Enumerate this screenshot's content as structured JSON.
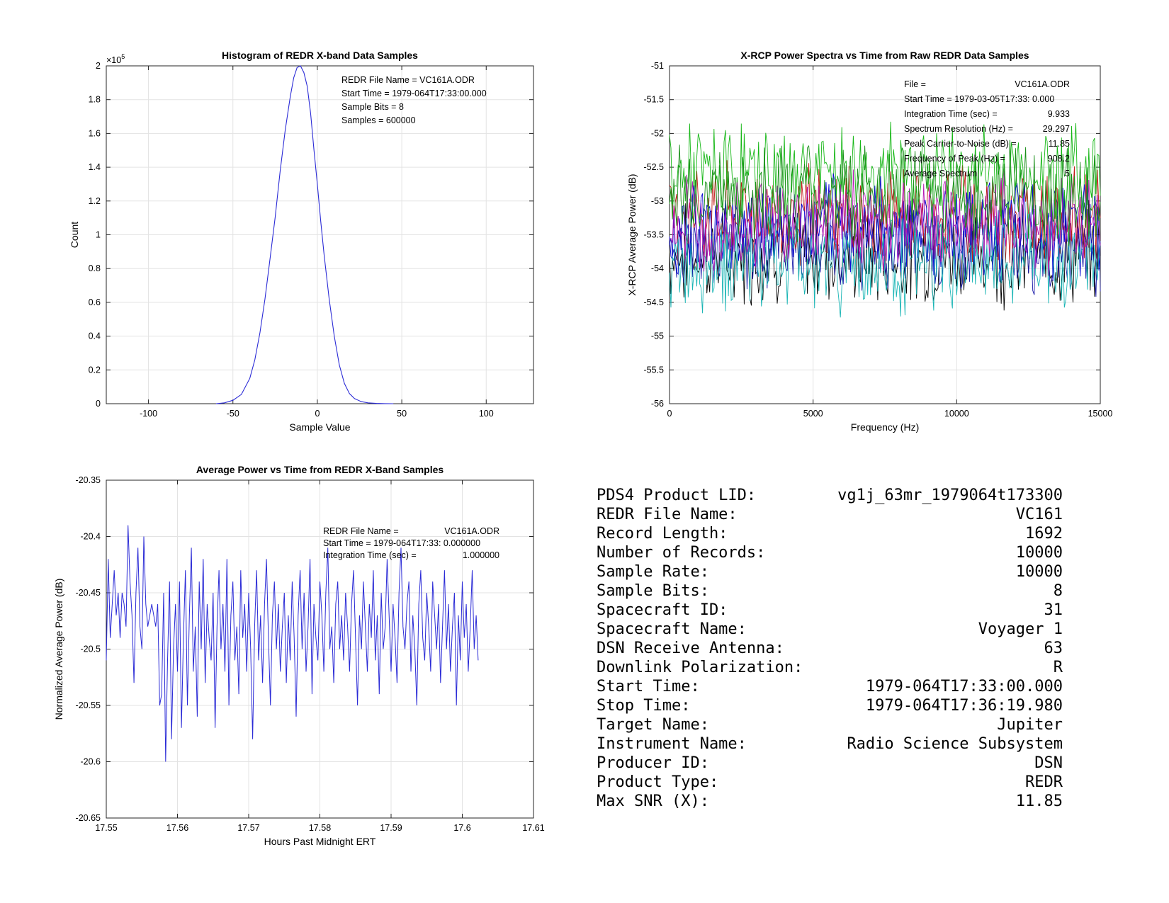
{
  "chart_data": [
    {
      "type": "line",
      "title": "Histogram of REDR X-band Data Samples",
      "xlabel": "Sample Value",
      "ylabel": "Count",
      "xlim": [
        -125,
        128
      ],
      "ylim": [
        0,
        200000
      ],
      "y_exponent_label": "×10",
      "y_exponent_power": "5",
      "y_tick_scale": 100000,
      "grid": true,
      "xticks": [
        -100,
        -50,
        0,
        50,
        100
      ],
      "yticks": [
        0,
        20000,
        40000,
        60000,
        80000,
        100000,
        120000,
        140000,
        160000,
        180000,
        200000
      ],
      "x": [
        -60,
        -55,
        -50,
        -45,
        -40,
        -37,
        -34,
        -31,
        -28,
        -25,
        -22,
        -19,
        -16,
        -14,
        -12,
        -10,
        -8,
        -6,
        -4,
        -2,
        0,
        2,
        4,
        7,
        10,
        13,
        16,
        19,
        22,
        26,
        30,
        35,
        40,
        45
      ],
      "values": [
        0,
        500,
        2000,
        5500,
        15000,
        26000,
        42000,
        62000,
        86000,
        110000,
        138000,
        162000,
        182000,
        193000,
        199000,
        200000,
        196000,
        188000,
        172000,
        150000,
        130000,
        108000,
        88000,
        62000,
        40000,
        23000,
        12000,
        6000,
        3000,
        1200,
        500,
        150,
        50,
        0
      ],
      "series_color": "#2b2bd6",
      "annotations": [
        "REDR File Name = VC161A.ODR",
        "Start Time = 1979-064T17:33:00.000",
        "Sample Bits = 8",
        "Samples = 600000"
      ]
    },
    {
      "type": "line",
      "title": "X-RCP Power Spectra vs Time from Raw REDR Data Samples",
      "xlabel": "Frequency (Hz)",
      "ylabel": "X-RCP Average Power (dB)",
      "xlim": [
        0,
        15000
      ],
      "ylim": [
        -56,
        -51
      ],
      "grid": true,
      "xticks": [
        0,
        5000,
        10000,
        15000
      ],
      "yticks": [
        -56,
        -55.5,
        -55,
        -54.5,
        -54,
        -53.5,
        -53,
        -52.5,
        -52,
        -51.5,
        -51
      ],
      "series_colors": [
        "#000000",
        "#1a1aa8",
        "#c21a1a",
        "#16b716",
        "#0a0ad4",
        "#1ab5b5",
        "#b51ab5",
        "#1a8f1a"
      ],
      "series_mean_db": [
        -53.8,
        -53.6,
        -53.2,
        -52.6,
        -53.4,
        -53.9,
        -53.3,
        -52.9
      ],
      "series_spread_db": 0.55,
      "annotations": [
        {
          "label": "File =",
          "value": "VC161A.ODR"
        },
        {
          "label": "Start Time = 1979-03-05T17:33: 0.000",
          "value": ""
        },
        {
          "label": "Integration Time (sec) =",
          "value": "9.933"
        },
        {
          "label": "Spectrum Resolution (Hz) =",
          "value": "29.297"
        },
        {
          "label": "Peak Carrier-to-Noise (dB) =",
          "value": "11.85"
        },
        {
          "label": "Frequency of Peak (Hz) =",
          "value": "908.2"
        },
        {
          "label": "Average Spectrum",
          "value": "5"
        }
      ]
    },
    {
      "type": "line",
      "title": "Average Power vs Time from REDR X-Band Samples",
      "xlabel": "Hours Past Midnight ERT",
      "ylabel": "Normalized Average Power (dB)",
      "xlim": [
        17.55,
        17.61
      ],
      "ylim": [
        -20.65,
        -20.35
      ],
      "grid": true,
      "xticks": [
        17.55,
        17.56,
        17.57,
        17.58,
        17.59,
        17.6,
        17.61
      ],
      "xtick_labels": [
        "17.55",
        "17.56",
        "17.57",
        "17.58",
        "17.59",
        "17.6",
        "17.61"
      ],
      "yticks": [
        -20.65,
        -20.6,
        -20.55,
        -20.5,
        -20.45,
        -20.4,
        -20.35
      ],
      "x_start": 17.55,
      "x_step": 0.0002778,
      "values": [
        -20.51,
        -20.42,
        -20.49,
        -20.46,
        -20.43,
        -20.47,
        -20.45,
        -20.49,
        -20.45,
        -20.46,
        -20.48,
        -20.39,
        -20.44,
        -20.47,
        -20.53,
        -20.45,
        -20.41,
        -20.48,
        -20.5,
        -20.4,
        -20.46,
        -20.48,
        -20.47,
        -20.46,
        -20.47,
        -20.48,
        -20.46,
        -20.55,
        -20.54,
        -20.45,
        -20.6,
        -20.51,
        -20.44,
        -20.58,
        -20.5,
        -20.46,
        -20.52,
        -20.44,
        -20.57,
        -20.49,
        -20.43,
        -20.55,
        -20.47,
        -20.41,
        -20.52,
        -20.48,
        -20.56,
        -20.44,
        -20.5,
        -20.42,
        -20.53,
        -20.46,
        -20.49,
        -20.51,
        -20.45,
        -20.57,
        -20.48,
        -20.43,
        -20.5,
        -20.46,
        -20.52,
        -20.42,
        -20.55,
        -20.47,
        -20.44,
        -20.51,
        -20.48,
        -20.54,
        -20.43,
        -20.49,
        -20.46,
        -20.52,
        -20.45,
        -20.5,
        -20.58,
        -20.48,
        -20.43,
        -20.51,
        -20.47,
        -20.53,
        -20.46,
        -20.42,
        -20.49,
        -20.55,
        -20.47,
        -20.44,
        -20.5,
        -20.46,
        -20.52,
        -20.48,
        -20.45,
        -20.53,
        -20.47,
        -20.51,
        -20.44,
        -20.49,
        -20.56,
        -20.47,
        -20.43,
        -20.5,
        -20.45,
        -20.52,
        -20.48,
        -20.42,
        -20.54,
        -20.46,
        -20.49,
        -20.51,
        -20.44,
        -20.47,
        -20.52,
        -20.45,
        -20.41,
        -20.5,
        -20.48,
        -20.53,
        -20.46,
        -20.44,
        -20.5,
        -20.47,
        -20.51,
        -20.45,
        -20.48,
        -20.52,
        -20.46,
        -20.43,
        -20.49,
        -20.55,
        -20.47,
        -20.5,
        -20.44,
        -20.48,
        -20.52,
        -20.46,
        -20.49,
        -20.43,
        -20.51,
        -20.47,
        -20.54,
        -20.45,
        -20.5,
        -20.48,
        -20.42,
        -20.47,
        -20.52,
        -20.46,
        -20.49,
        -20.53,
        -20.45,
        -20.41,
        -20.48,
        -20.5,
        -20.46,
        -20.44,
        -20.52,
        -20.47,
        -20.5,
        -20.55,
        -20.46,
        -20.43,
        -20.49,
        -20.51,
        -20.45,
        -20.48,
        -20.52,
        -20.44,
        -20.47,
        -20.5,
        -20.46,
        -20.53,
        -20.48,
        -20.43,
        -20.5,
        -20.46,
        -20.52,
        -20.48,
        -20.45,
        -20.55,
        -20.47,
        -20.51,
        -20.44,
        -20.49,
        -20.46,
        -20.52,
        -20.48,
        -20.43,
        -20.5,
        -20.47,
        -20.51
      ],
      "series_color": "#2b2bd6",
      "annotations": [
        {
          "label": "REDR File Name =",
          "value": "VC161A.ODR"
        },
        {
          "label": "Start Time = 1979-064T17:33: 0.000000",
          "value": ""
        },
        {
          "label": "Integration Time (sec) =",
          "value": "1.000000"
        }
      ]
    }
  ],
  "info_table": [
    {
      "label": "PDS4 Product LID:",
      "value": "vg1j_63mr_1979064t173300"
    },
    {
      "label": "REDR File Name:",
      "value": "VC161"
    },
    {
      "label": "Record Length:",
      "value": "1692"
    },
    {
      "label": "Number of Records:",
      "value": "10000"
    },
    {
      "label": "Sample Rate:",
      "value": "10000"
    },
    {
      "label": "Sample Bits:",
      "value": "8"
    },
    {
      "label": "Spacecraft ID:",
      "value": "31"
    },
    {
      "label": "Spacecraft Name:",
      "value": "Voyager 1"
    },
    {
      "label": "DSN Receive Antenna:",
      "value": "63"
    },
    {
      "label": "Downlink Polarization:",
      "value": "R"
    },
    {
      "label": "Start Time:",
      "value": "1979-064T17:33:00.000"
    },
    {
      "label": "Stop Time:",
      "value": "1979-064T17:36:19.980"
    },
    {
      "label": "Target Name:",
      "value": "Jupiter"
    },
    {
      "label": "Instrument Name:",
      "value": "Radio Science Subsystem"
    },
    {
      "label": "Producer ID:",
      "value": "DSN"
    },
    {
      "label": "Product Type:",
      "value": "REDR"
    },
    {
      "label": "Max SNR (X):",
      "value": "11.85"
    }
  ]
}
